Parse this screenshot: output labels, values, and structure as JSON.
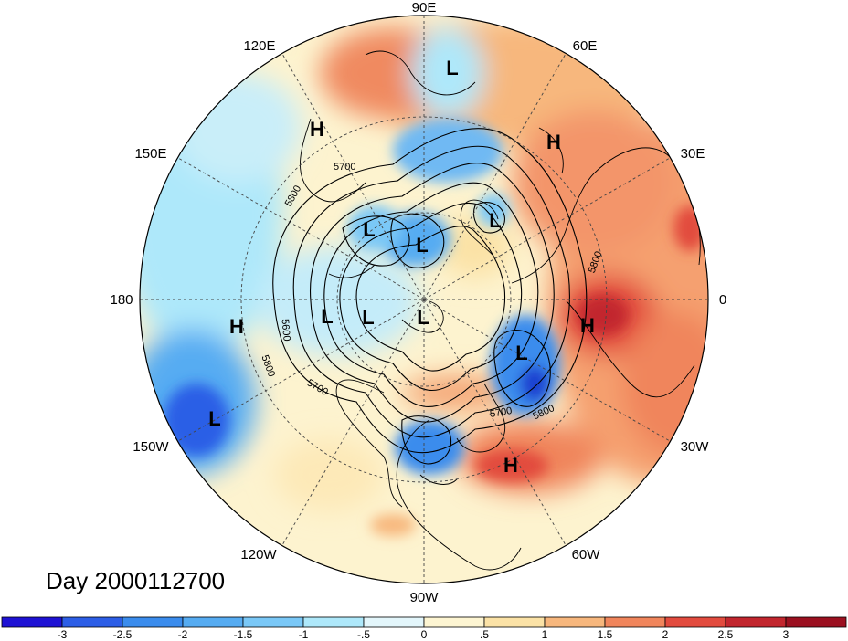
{
  "title": "Day 2000112700",
  "longitude_labels": {
    "e90": "90E",
    "e60": "60E",
    "e120": "120E",
    "e150": "150E",
    "e30": "30E",
    "dateline": "180",
    "prime": "0",
    "w150": "150W",
    "w30": "30W",
    "w120": "120W",
    "w60": "60W",
    "w90": "90W"
  },
  "pressure_centers": [
    {
      "label": "L"
    },
    {
      "label": "H"
    },
    {
      "label": "H"
    },
    {
      "label": "L"
    },
    {
      "label": "L"
    },
    {
      "label": "L"
    },
    {
      "label": "H"
    },
    {
      "label": "L"
    },
    {
      "label": "L"
    },
    {
      "label": "L"
    },
    {
      "label": "H"
    },
    {
      "label": "L"
    },
    {
      "label": "L"
    },
    {
      "label": "H"
    }
  ],
  "contour_labels": [
    "5700",
    "5800",
    "5600",
    "5800",
    "5700",
    "5800",
    "5700",
    "5800"
  ],
  "colorbar": {
    "ticks": [
      "-3",
      "-2.5",
      "-2",
      "-1.5",
      "-1",
      "-.5",
      "0",
      ".5",
      "1",
      "1.5",
      "2",
      "2.5",
      "3"
    ],
    "colors": [
      "#1e12d4",
      "#2c5ee6",
      "#3a8ced",
      "#56acf2",
      "#7ac8f7",
      "#aee8fa",
      "#e3f6fb",
      "#fdf5d2",
      "#fbe2a6",
      "#f7b77d",
      "#f0855c",
      "#e24b3e",
      "#c2262e",
      "#9b1020"
    ]
  }
}
